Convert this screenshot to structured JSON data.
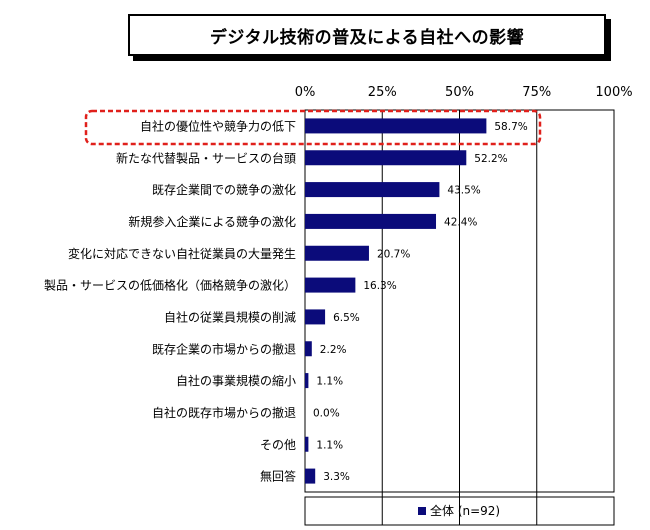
{
  "chart_data": {
    "type": "bar",
    "orientation": "horizontal",
    "title": "デジタル技術の普及による自社への影響",
    "categories": [
      "自社の優位性や競争力の低下",
      "新たな代替製品・サービスの台頭",
      "既存企業間での競争の激化",
      "新規参入企業による競争の激化",
      "変化に対応できない自社従業員の大量発生",
      "製品・サービスの低価格化（価格競争の激化）",
      "自社の従業員規模の削減",
      "既存企業の市場からの撤退",
      "自社の事業規模の縮小",
      "自社の既存市場からの撤退",
      "その他",
      "無回答"
    ],
    "series": [
      {
        "name": "全体 (n=92)",
        "color": "#0b0b7a",
        "values": [
          58.7,
          52.2,
          43.5,
          42.4,
          20.7,
          16.3,
          6.5,
          2.2,
          1.1,
          0.0,
          1.1,
          3.3
        ],
        "value_labels": [
          "58.7%",
          "52.2%",
          "43.5%",
          "42.4%",
          "20.7%",
          "16.3%",
          "6.5%",
          "2.2%",
          "1.1%",
          "0.0%",
          "1.1%",
          "3.3%"
        ]
      }
    ],
    "xlim": [
      0,
      100
    ],
    "x_ticks": [
      0,
      25,
      50,
      75,
      100
    ],
    "x_tick_labels": [
      "0%",
      "25%",
      "50%",
      "75%",
      "100%"
    ],
    "xlabel": "",
    "ylabel": "",
    "grid": true,
    "legend_position": "bottom",
    "highlight_category_index": 0,
    "highlight_color": "#e0201b"
  }
}
